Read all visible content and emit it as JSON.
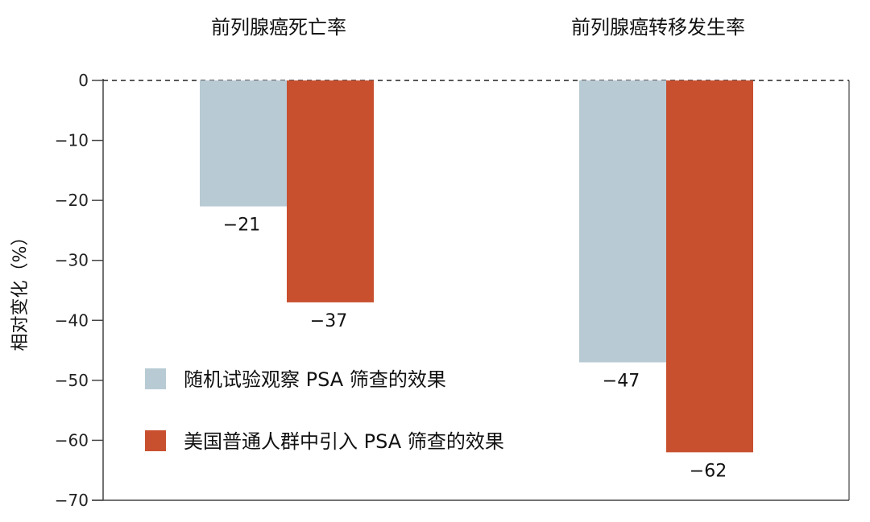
{
  "chart_data": {
    "type": "bar",
    "categories": [
      "前列腺癌死亡率",
      "前列腺癌转移发生率"
    ],
    "series": [
      {
        "name": "随机试验观察 PSA 筛查的效果",
        "values": [
          -21,
          -47
        ],
        "color": "#b8cbd4"
      },
      {
        "name": "美国普通人群中引入 PSA 筛查的效果",
        "values": [
          -37,
          -62
        ],
        "color": "#c9502f"
      }
    ],
    "data_labels": [
      [
        "−21",
        "−47"
      ],
      [
        "−37",
        "−62"
      ]
    ],
    "ylabel": "相对变化（%）",
    "yticks": [
      0,
      -10,
      -20,
      -30,
      -40,
      -50,
      -60,
      -70
    ],
    "ytick_labels": [
      "0",
      "−10",
      "−20",
      "−30",
      "−40",
      "−50",
      "−60",
      "−70"
    ],
    "ylim": [
      -70,
      0
    ],
    "zero_line": "dashed",
    "grid": false,
    "legend_position": "lower-left"
  }
}
